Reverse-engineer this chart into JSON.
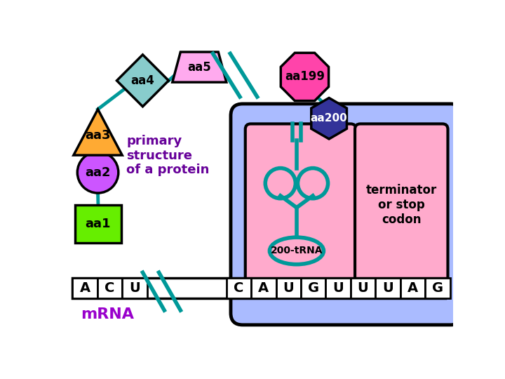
{
  "bg_color": "#ffffff",
  "ribosome_outer_color": "#aabbff",
  "ribosome_inner_pink_color": "#ffaacc",
  "ribosome_border": "#000000",
  "mrna_label": "mRNA",
  "mrna_label_color": "#9900cc",
  "slash_color": "#009999",
  "trna_color": "#009999",
  "aa1_label": "aa1",
  "aa1_color": "#66ee00",
  "aa2_label": "aa2",
  "aa2_color": "#cc55ff",
  "aa3_label": "aa3",
  "aa3_color": "#ffaa33",
  "aa4_label": "aa4",
  "aa4_color": "#88cccc",
  "aa5_label": "aa5",
  "aa5_color": "#ffaaee",
  "aa199_label": "aa199",
  "aa199_color": "#ff44aa",
  "aa200_label": "aa200",
  "aa200_color": "#333399",
  "text_label": "primary\nstructure\nof a protein",
  "text_color": "#660099",
  "terminator_label": "terminator\nor stop\ncodon",
  "connector_color": "#009999",
  "mrna_bases": [
    "A",
    "C",
    "U",
    "C",
    "A",
    "U",
    "G",
    "U",
    "U",
    "U",
    "A",
    "G"
  ]
}
